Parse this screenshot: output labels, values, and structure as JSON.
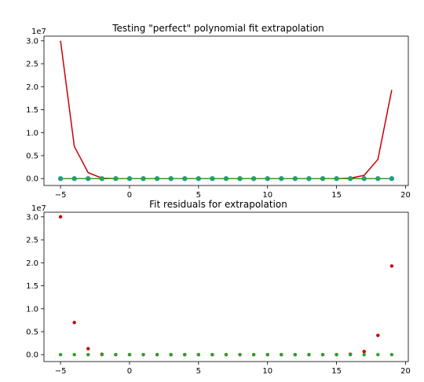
{
  "chart_data": [
    {
      "type": "line",
      "title": "Testing \"perfect\" polynomial fit extrapolation",
      "y_offset_label": "1e7",
      "x": [
        -5,
        -4,
        -3,
        -2,
        -1,
        0,
        1,
        2,
        3,
        4,
        5,
        6,
        7,
        8,
        9,
        10,
        11,
        12,
        13,
        14,
        15,
        16,
        17,
        18,
        19
      ],
      "xlim": [
        -6.2,
        20.2
      ],
      "ylim": [
        -0.15,
        3.1
      ],
      "xticks": [
        -5,
        0,
        5,
        10,
        15,
        20
      ],
      "xtick_labels": [
        "−5",
        "0",
        "5",
        "10",
        "15",
        "20"
      ],
      "yticks": [
        0.0,
        0.5,
        1.0,
        1.5,
        2.0,
        2.5,
        3.0
      ],
      "ytick_labels": [
        "0.0",
        "0.5",
        "1.0",
        "1.5",
        "2.0",
        "2.5",
        "3.0"
      ],
      "grid": false,
      "series": [
        {
          "style": "line",
          "color": "#cc0000",
          "values": [
            3.0,
            0.7,
            0.13,
            0.01,
            0.0,
            0.0,
            0.0,
            0.0,
            0.0,
            0.0,
            0.0,
            0.0,
            0.0,
            0.0,
            0.0,
            0.0,
            0.0,
            0.0,
            0.0,
            0.0,
            0.0,
            0.01,
            0.07,
            0.42,
            1.93
          ]
        },
        {
          "style": "markers",
          "color": "#1f9e9e",
          "values": [
            0,
            0,
            0,
            0,
            0,
            0,
            0,
            0,
            0,
            0,
            0,
            0,
            0,
            0,
            0,
            0,
            0,
            0,
            0,
            0,
            0,
            0,
            0,
            0,
            0
          ]
        },
        {
          "style": "line",
          "color": "#2ca02c",
          "values": [
            0,
            0,
            0,
            0,
            0,
            0,
            0,
            0,
            0,
            0,
            0,
            0,
            0,
            0,
            0,
            0,
            0,
            0,
            0,
            0,
            0,
            0,
            0,
            0,
            0
          ]
        }
      ]
    },
    {
      "type": "scatter",
      "title": "Fit residuals for extrapolation",
      "y_offset_label": "1e7",
      "x": [
        -5,
        -4,
        -3,
        -2,
        -1,
        0,
        1,
        2,
        3,
        4,
        5,
        6,
        7,
        8,
        9,
        10,
        11,
        12,
        13,
        14,
        15,
        16,
        17,
        18,
        19
      ],
      "xlim": [
        -6.2,
        20.2
      ],
      "ylim": [
        -0.15,
        3.1
      ],
      "xticks": [
        -5,
        0,
        5,
        10,
        15,
        20
      ],
      "xtick_labels": [
        "−5",
        "0",
        "5",
        "10",
        "15",
        "20"
      ],
      "yticks": [
        0.0,
        0.5,
        1.0,
        1.5,
        2.0,
        2.5,
        3.0
      ],
      "ytick_labels": [
        "0.0",
        "0.5",
        "1.0",
        "1.5",
        "2.0",
        "2.5",
        "3.0"
      ],
      "grid": false,
      "series": [
        {
          "style": "markers",
          "color": "#cc0000",
          "values": [
            3.0,
            0.7,
            0.13,
            0.01,
            0.0,
            0.0,
            0.0,
            0.0,
            0.0,
            0.0,
            0.0,
            0.0,
            0.0,
            0.0,
            0.0,
            0.0,
            0.0,
            0.0,
            0.0,
            0.0,
            0.0,
            0.01,
            0.07,
            0.42,
            1.93
          ]
        },
        {
          "style": "markers",
          "color": "#2ca02c",
          "values": [
            0,
            0,
            0,
            0,
            0,
            0,
            0,
            0,
            0,
            0,
            0,
            0,
            0,
            0,
            0,
            0,
            0,
            0,
            0,
            0,
            0,
            0,
            0,
            0,
            0
          ]
        }
      ]
    }
  ]
}
